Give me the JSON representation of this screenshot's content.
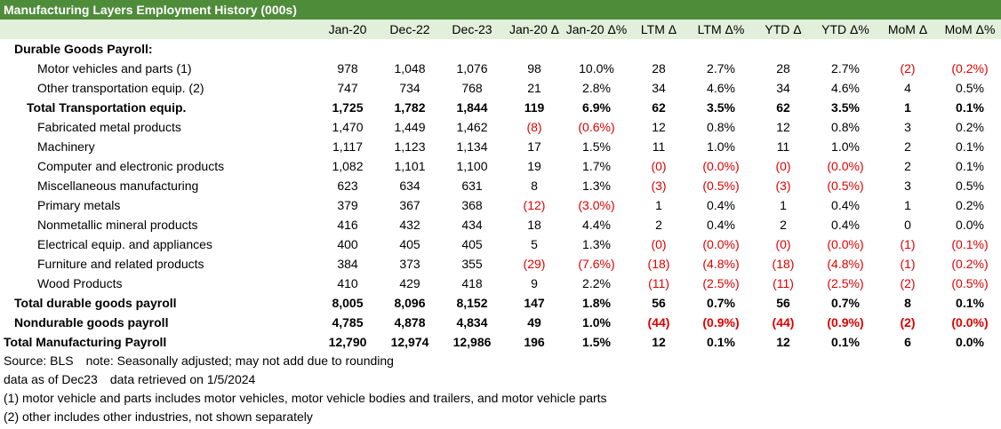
{
  "title": "Manufacturing Layers Employment History (000s)",
  "columns": [
    "",
    "Jan-20",
    "Dec-22",
    "Dec-23",
    "Jan-20 Δ",
    "Jan-20 Δ%",
    "LTM Δ",
    "LTM Δ%",
    "YTD Δ",
    "YTD Δ%",
    "MoM Δ",
    "MoM Δ%"
  ],
  "negative_color": "#e00000",
  "header_color": "#e2efda",
  "title_bar_color": "#4e8c3a",
  "rows": [
    {
      "label": "Durable Goods Payroll:",
      "indent": 1,
      "bold": true,
      "values": [
        "",
        "",
        "",
        "",
        "",
        "",
        "",
        "",
        "",
        "",
        ""
      ]
    },
    {
      "label": "Motor vehicles and parts (1)",
      "indent": 3,
      "bold": false,
      "values": [
        "978",
        "1,048",
        "1,076",
        "98",
        "10.0%",
        "28",
        "2.7%",
        "28",
        "2.7%",
        "(2)",
        "(0.2%)"
      ]
    },
    {
      "label": "Other transportation equip. (2)",
      "indent": 3,
      "bold": false,
      "values": [
        "747",
        "734",
        "768",
        "21",
        "2.8%",
        "34",
        "4.6%",
        "34",
        "4.6%",
        "4",
        "0.5%"
      ]
    },
    {
      "label": "Total Transportation equip.",
      "indent": 2,
      "bold": true,
      "values": [
        "1,725",
        "1,782",
        "1,844",
        "119",
        "6.9%",
        "62",
        "3.5%",
        "62",
        "3.5%",
        "1",
        "0.1%"
      ]
    },
    {
      "label": "Fabricated metal products",
      "indent": 3,
      "bold": false,
      "values": [
        "1,470",
        "1,449",
        "1,462",
        "(8)",
        "(0.6%)",
        "12",
        "0.8%",
        "12",
        "0.8%",
        "3",
        "0.2%"
      ]
    },
    {
      "label": "Machinery",
      "indent": 3,
      "bold": false,
      "values": [
        "1,117",
        "1,123",
        "1,134",
        "17",
        "1.5%",
        "11",
        "1.0%",
        "11",
        "1.0%",
        "2",
        "0.1%"
      ]
    },
    {
      "label": "Computer and electronic products",
      "indent": 3,
      "bold": false,
      "values": [
        "1,082",
        "1,101",
        "1,100",
        "19",
        "1.7%",
        "(0)",
        "(0.0%)",
        "(0)",
        "(0.0%)",
        "2",
        "0.1%"
      ]
    },
    {
      "label": "Miscellaneous manufacturing",
      "indent": 3,
      "bold": false,
      "values": [
        "623",
        "634",
        "631",
        "8",
        "1.3%",
        "(3)",
        "(0.5%)",
        "(3)",
        "(0.5%)",
        "3",
        "0.5%"
      ]
    },
    {
      "label": "Primary metals",
      "indent": 3,
      "bold": false,
      "values": [
        "379",
        "367",
        "368",
        "(12)",
        "(3.0%)",
        "1",
        "0.4%",
        "1",
        "0.4%",
        "1",
        "0.2%"
      ]
    },
    {
      "label": "Nonmetallic mineral products",
      "indent": 3,
      "bold": false,
      "values": [
        "416",
        "432",
        "434",
        "18",
        "4.4%",
        "2",
        "0.4%",
        "2",
        "0.4%",
        "0",
        "0.0%"
      ]
    },
    {
      "label": "Electrical equip. and appliances",
      "indent": 3,
      "bold": false,
      "values": [
        "400",
        "405",
        "405",
        "5",
        "1.3%",
        "(0)",
        "(0.0%)",
        "(0)",
        "(0.0%)",
        "(1)",
        "(0.1%)"
      ]
    },
    {
      "label": "Furniture and related products",
      "indent": 3,
      "bold": false,
      "values": [
        "384",
        "373",
        "355",
        "(29)",
        "(7.6%)",
        "(18)",
        "(4.8%)",
        "(18)",
        "(4.8%)",
        "(1)",
        "(0.2%)"
      ]
    },
    {
      "label": "Wood Products",
      "indent": 3,
      "bold": false,
      "values": [
        "410",
        "429",
        "418",
        "9",
        "2.2%",
        "(11)",
        "(2.5%)",
        "(11)",
        "(2.5%)",
        "(2)",
        "(0.5%)"
      ]
    },
    {
      "label": "Total durable goods payroll",
      "indent": 1,
      "bold": true,
      "values": [
        "8,005",
        "8,096",
        "8,152",
        "147",
        "1.8%",
        "56",
        "0.7%",
        "56",
        "0.7%",
        "8",
        "0.1%"
      ]
    },
    {
      "label": "Nondurable goods payroll",
      "indent": 1,
      "bold": true,
      "values": [
        "4,785",
        "4,878",
        "4,834",
        "49",
        "1.0%",
        "(44)",
        "(0.9%)",
        "(44)",
        "(0.9%)",
        "(2)",
        "(0.0%)"
      ]
    },
    {
      "label": "Total Manufacturing Payroll",
      "indent": 0,
      "bold": true,
      "values": [
        "12,790",
        "12,974",
        "12,986",
        "196",
        "1.5%",
        "12",
        "0.1%",
        "12",
        "0.1%",
        "6",
        "0.0%"
      ]
    }
  ],
  "footnotes": {
    "source": "Source: BLS",
    "note": "note: Seasonally adjusted; may not add due to rounding",
    "data_as_of": "data as of Dec23",
    "retrieved": "data retrieved on 1/5/2024",
    "fn1": "(1) motor vehicle and parts includes motor vehicles, motor vehicle bodies and trailers, and motor vehicle parts",
    "fn2": "(2) other includes other industries, not shown separately"
  }
}
